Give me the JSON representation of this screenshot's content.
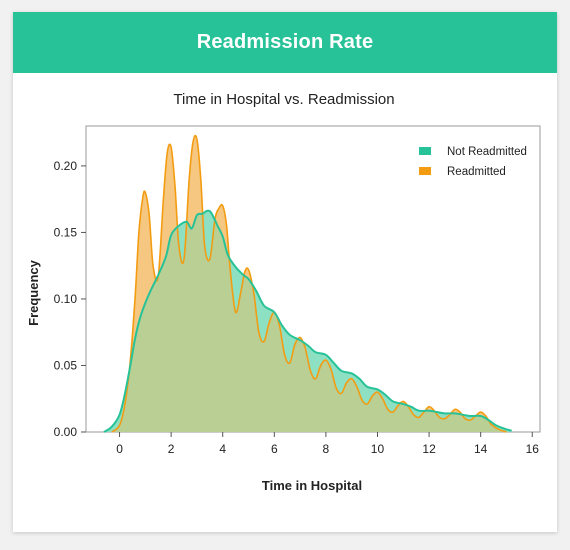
{
  "header": {
    "title": "Readmission Rate"
  },
  "colors": {
    "header": "#27c297",
    "not_readmitted_line": "#27c297",
    "not_readmitted_fill": "#8ee0c2",
    "readmitted_line": "#f39c12",
    "readmitted_fill": "#f6c780",
    "overlap_fill": "#b9cf94"
  },
  "chart_data": {
    "type": "area",
    "title": "Time in Hospital vs. Readmission",
    "xlabel": "Time in Hospital",
    "ylabel": "Frequency",
    "xlim": [
      -1.3,
      16.3
    ],
    "ylim": [
      0,
      0.23
    ],
    "xticks": [
      "0",
      "2",
      "4",
      "6",
      "8",
      "10",
      "12",
      "14",
      "16"
    ],
    "yticks": [
      "0.00",
      "0.05",
      "0.10",
      "0.15",
      "0.20"
    ],
    "legend_position": "top-right",
    "series": [
      {
        "name": "Not Readmitted",
        "x": [
          -0.6,
          -0.3,
          0,
          0.2,
          0.4,
          0.6,
          0.8,
          1,
          1.2,
          1.5,
          1.8,
          2,
          2.3,
          2.6,
          2.8,
          3,
          3.2,
          3.5,
          3.8,
          4,
          4.2,
          4.5,
          4.8,
          5,
          5.3,
          5.6,
          6,
          6.3,
          6.6,
          7,
          7.3,
          7.6,
          8,
          8.3,
          8.6,
          9,
          9.3,
          9.6,
          10,
          10.3,
          10.6,
          11,
          11.3,
          11.6,
          12,
          12.3,
          12.6,
          13,
          13.3,
          13.6,
          14,
          14.3,
          14.6,
          15,
          15.2
        ],
        "y": [
          0.0,
          0.004,
          0.013,
          0.028,
          0.048,
          0.07,
          0.086,
          0.097,
          0.106,
          0.118,
          0.132,
          0.148,
          0.155,
          0.158,
          0.153,
          0.163,
          0.164,
          0.166,
          0.155,
          0.147,
          0.133,
          0.124,
          0.118,
          0.115,
          0.106,
          0.095,
          0.09,
          0.08,
          0.073,
          0.069,
          0.065,
          0.06,
          0.058,
          0.052,
          0.046,
          0.044,
          0.04,
          0.034,
          0.032,
          0.028,
          0.023,
          0.021,
          0.019,
          0.016,
          0.016,
          0.015,
          0.014,
          0.014,
          0.013,
          0.012,
          0.012,
          0.009,
          0.005,
          0.002,
          0.001
        ]
      },
      {
        "name": "Readmitted",
        "x": [
          -0.3,
          0,
          0.2,
          0.4,
          0.6,
          0.75,
          0.9,
          1,
          1.15,
          1.3,
          1.5,
          1.7,
          1.85,
          2,
          2.15,
          2.3,
          2.5,
          2.7,
          2.85,
          3,
          3.15,
          3.3,
          3.5,
          3.7,
          3.85,
          4,
          4.15,
          4.3,
          4.5,
          4.7,
          4.85,
          5,
          5.2,
          5.4,
          5.6,
          5.8,
          6,
          6.2,
          6.4,
          6.6,
          6.8,
          7,
          7.2,
          7.4,
          7.6,
          7.8,
          8,
          8.2,
          8.4,
          8.6,
          8.8,
          9,
          9.2,
          9.4,
          9.6,
          9.8,
          10,
          10.2,
          10.4,
          10.6,
          10.8,
          11,
          11.2,
          11.4,
          11.6,
          11.8,
          12,
          12.2,
          12.4,
          12.6,
          12.8,
          13,
          13.2,
          13.4,
          13.6,
          13.8,
          14,
          14.2,
          14.4,
          14.7,
          15
        ],
        "y": [
          0.0,
          0.005,
          0.02,
          0.05,
          0.1,
          0.15,
          0.176,
          0.18,
          0.163,
          0.125,
          0.117,
          0.175,
          0.21,
          0.214,
          0.185,
          0.14,
          0.13,
          0.19,
          0.218,
          0.22,
          0.19,
          0.14,
          0.13,
          0.16,
          0.168,
          0.17,
          0.155,
          0.12,
          0.09,
          0.105,
          0.12,
          0.122,
          0.105,
          0.075,
          0.068,
          0.082,
          0.09,
          0.08,
          0.058,
          0.052,
          0.066,
          0.071,
          0.063,
          0.046,
          0.04,
          0.05,
          0.054,
          0.047,
          0.033,
          0.029,
          0.037,
          0.04,
          0.034,
          0.024,
          0.021,
          0.027,
          0.03,
          0.025,
          0.017,
          0.015,
          0.02,
          0.023,
          0.019,
          0.013,
          0.011,
          0.015,
          0.019,
          0.016,
          0.011,
          0.01,
          0.013,
          0.017,
          0.015,
          0.01,
          0.009,
          0.012,
          0.015,
          0.012,
          0.006,
          0.002,
          0.0
        ]
      }
    ]
  }
}
